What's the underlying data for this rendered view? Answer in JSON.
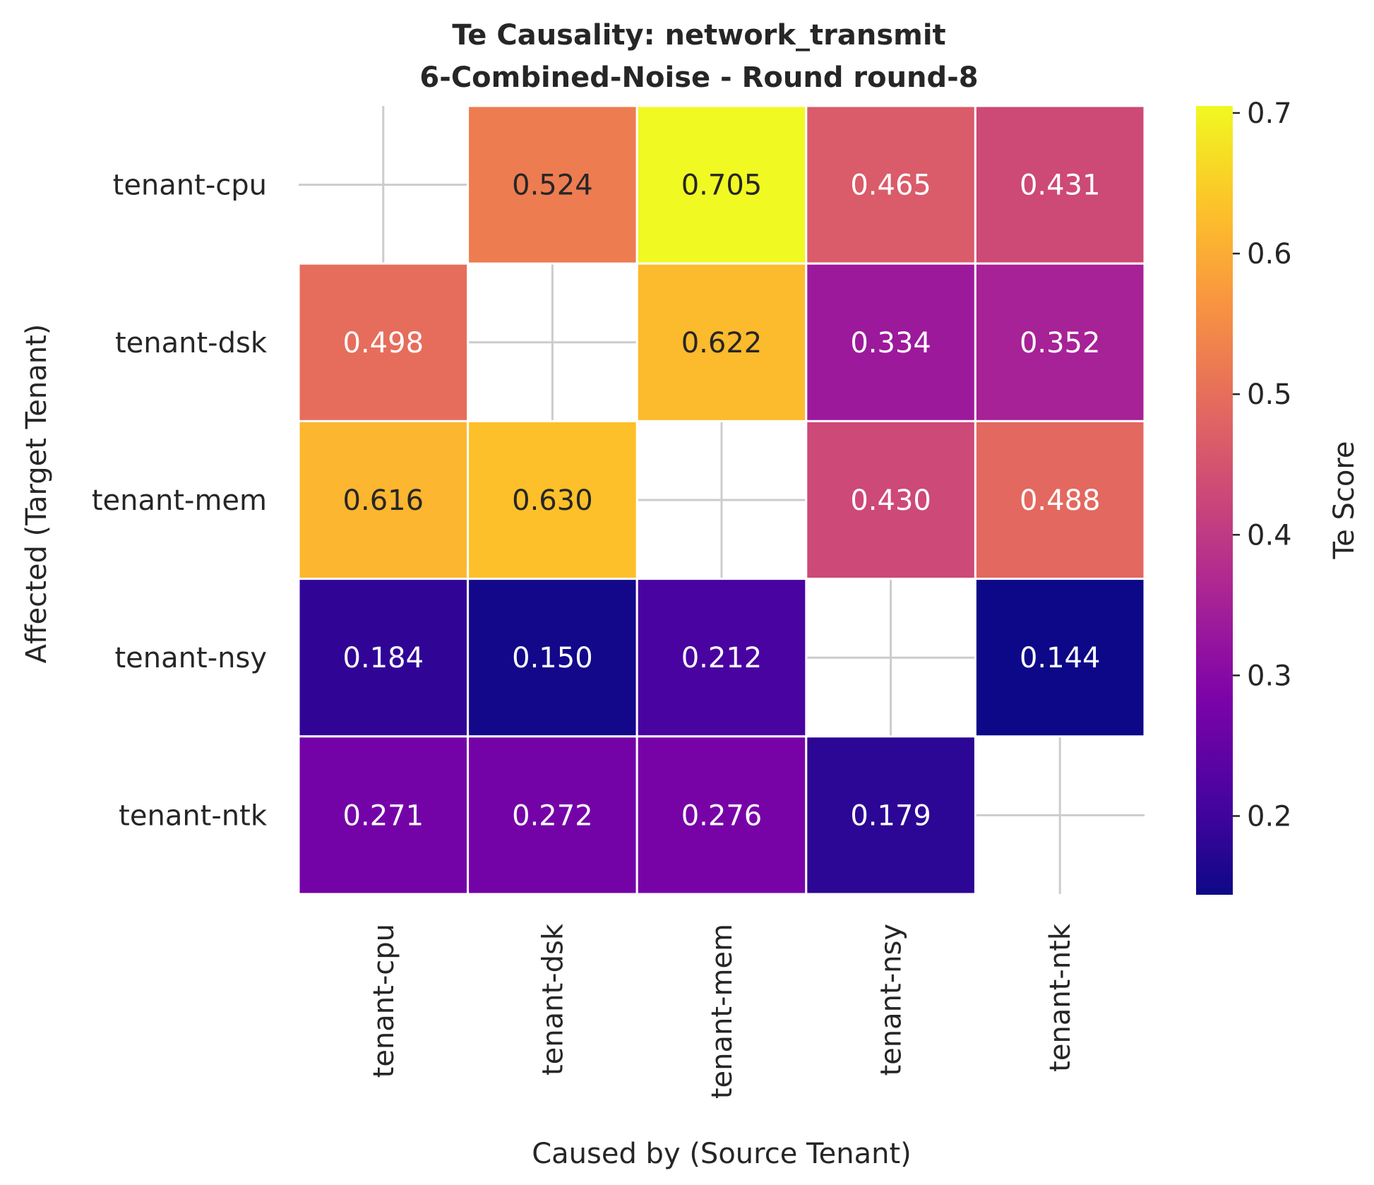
{
  "chart_data": {
    "type": "heatmap",
    "title_line1": "Te Causality: network_transmit",
    "title_line2": "6-Combined-Noise - Round round-8",
    "xlabel": "Caused by (Source Tenant)",
    "ylabel": "Affected (Target Tenant)",
    "x_categories": [
      "tenant-cpu",
      "tenant-dsk",
      "tenant-mem",
      "tenant-nsy",
      "tenant-ntk"
    ],
    "y_categories": [
      "tenant-cpu",
      "tenant-dsk",
      "tenant-mem",
      "tenant-nsy",
      "tenant-ntk"
    ],
    "values": [
      [
        null,
        0.524,
        0.705,
        0.465,
        0.431
      ],
      [
        0.498,
        null,
        0.622,
        0.334,
        0.352
      ],
      [
        0.616,
        0.63,
        null,
        0.43,
        0.488
      ],
      [
        0.184,
        0.15,
        0.212,
        null,
        0.144
      ],
      [
        0.271,
        0.272,
        0.276,
        0.179,
        null
      ]
    ],
    "value_labels": [
      [
        "",
        "0.524",
        "0.705",
        "0.465",
        "0.431"
      ],
      [
        "0.498",
        "",
        "0.622",
        "0.334",
        "0.352"
      ],
      [
        "0.616",
        "0.630",
        "",
        "0.430",
        "0.488"
      ],
      [
        "0.184",
        "0.150",
        "0.212",
        "",
        "0.144"
      ],
      [
        "0.271",
        "0.272",
        "0.276",
        "0.179",
        ""
      ]
    ],
    "colormap": "plasma",
    "vmin": 0.144,
    "vmax": 0.705,
    "colorbar": {
      "label": "Te Score",
      "ticks": [
        0.2,
        0.3,
        0.4,
        0.5,
        0.6,
        0.7
      ],
      "tick_labels": [
        "0.2",
        "0.3",
        "0.4",
        "0.5",
        "0.6",
        "0.7"
      ]
    },
    "grid": true
  }
}
